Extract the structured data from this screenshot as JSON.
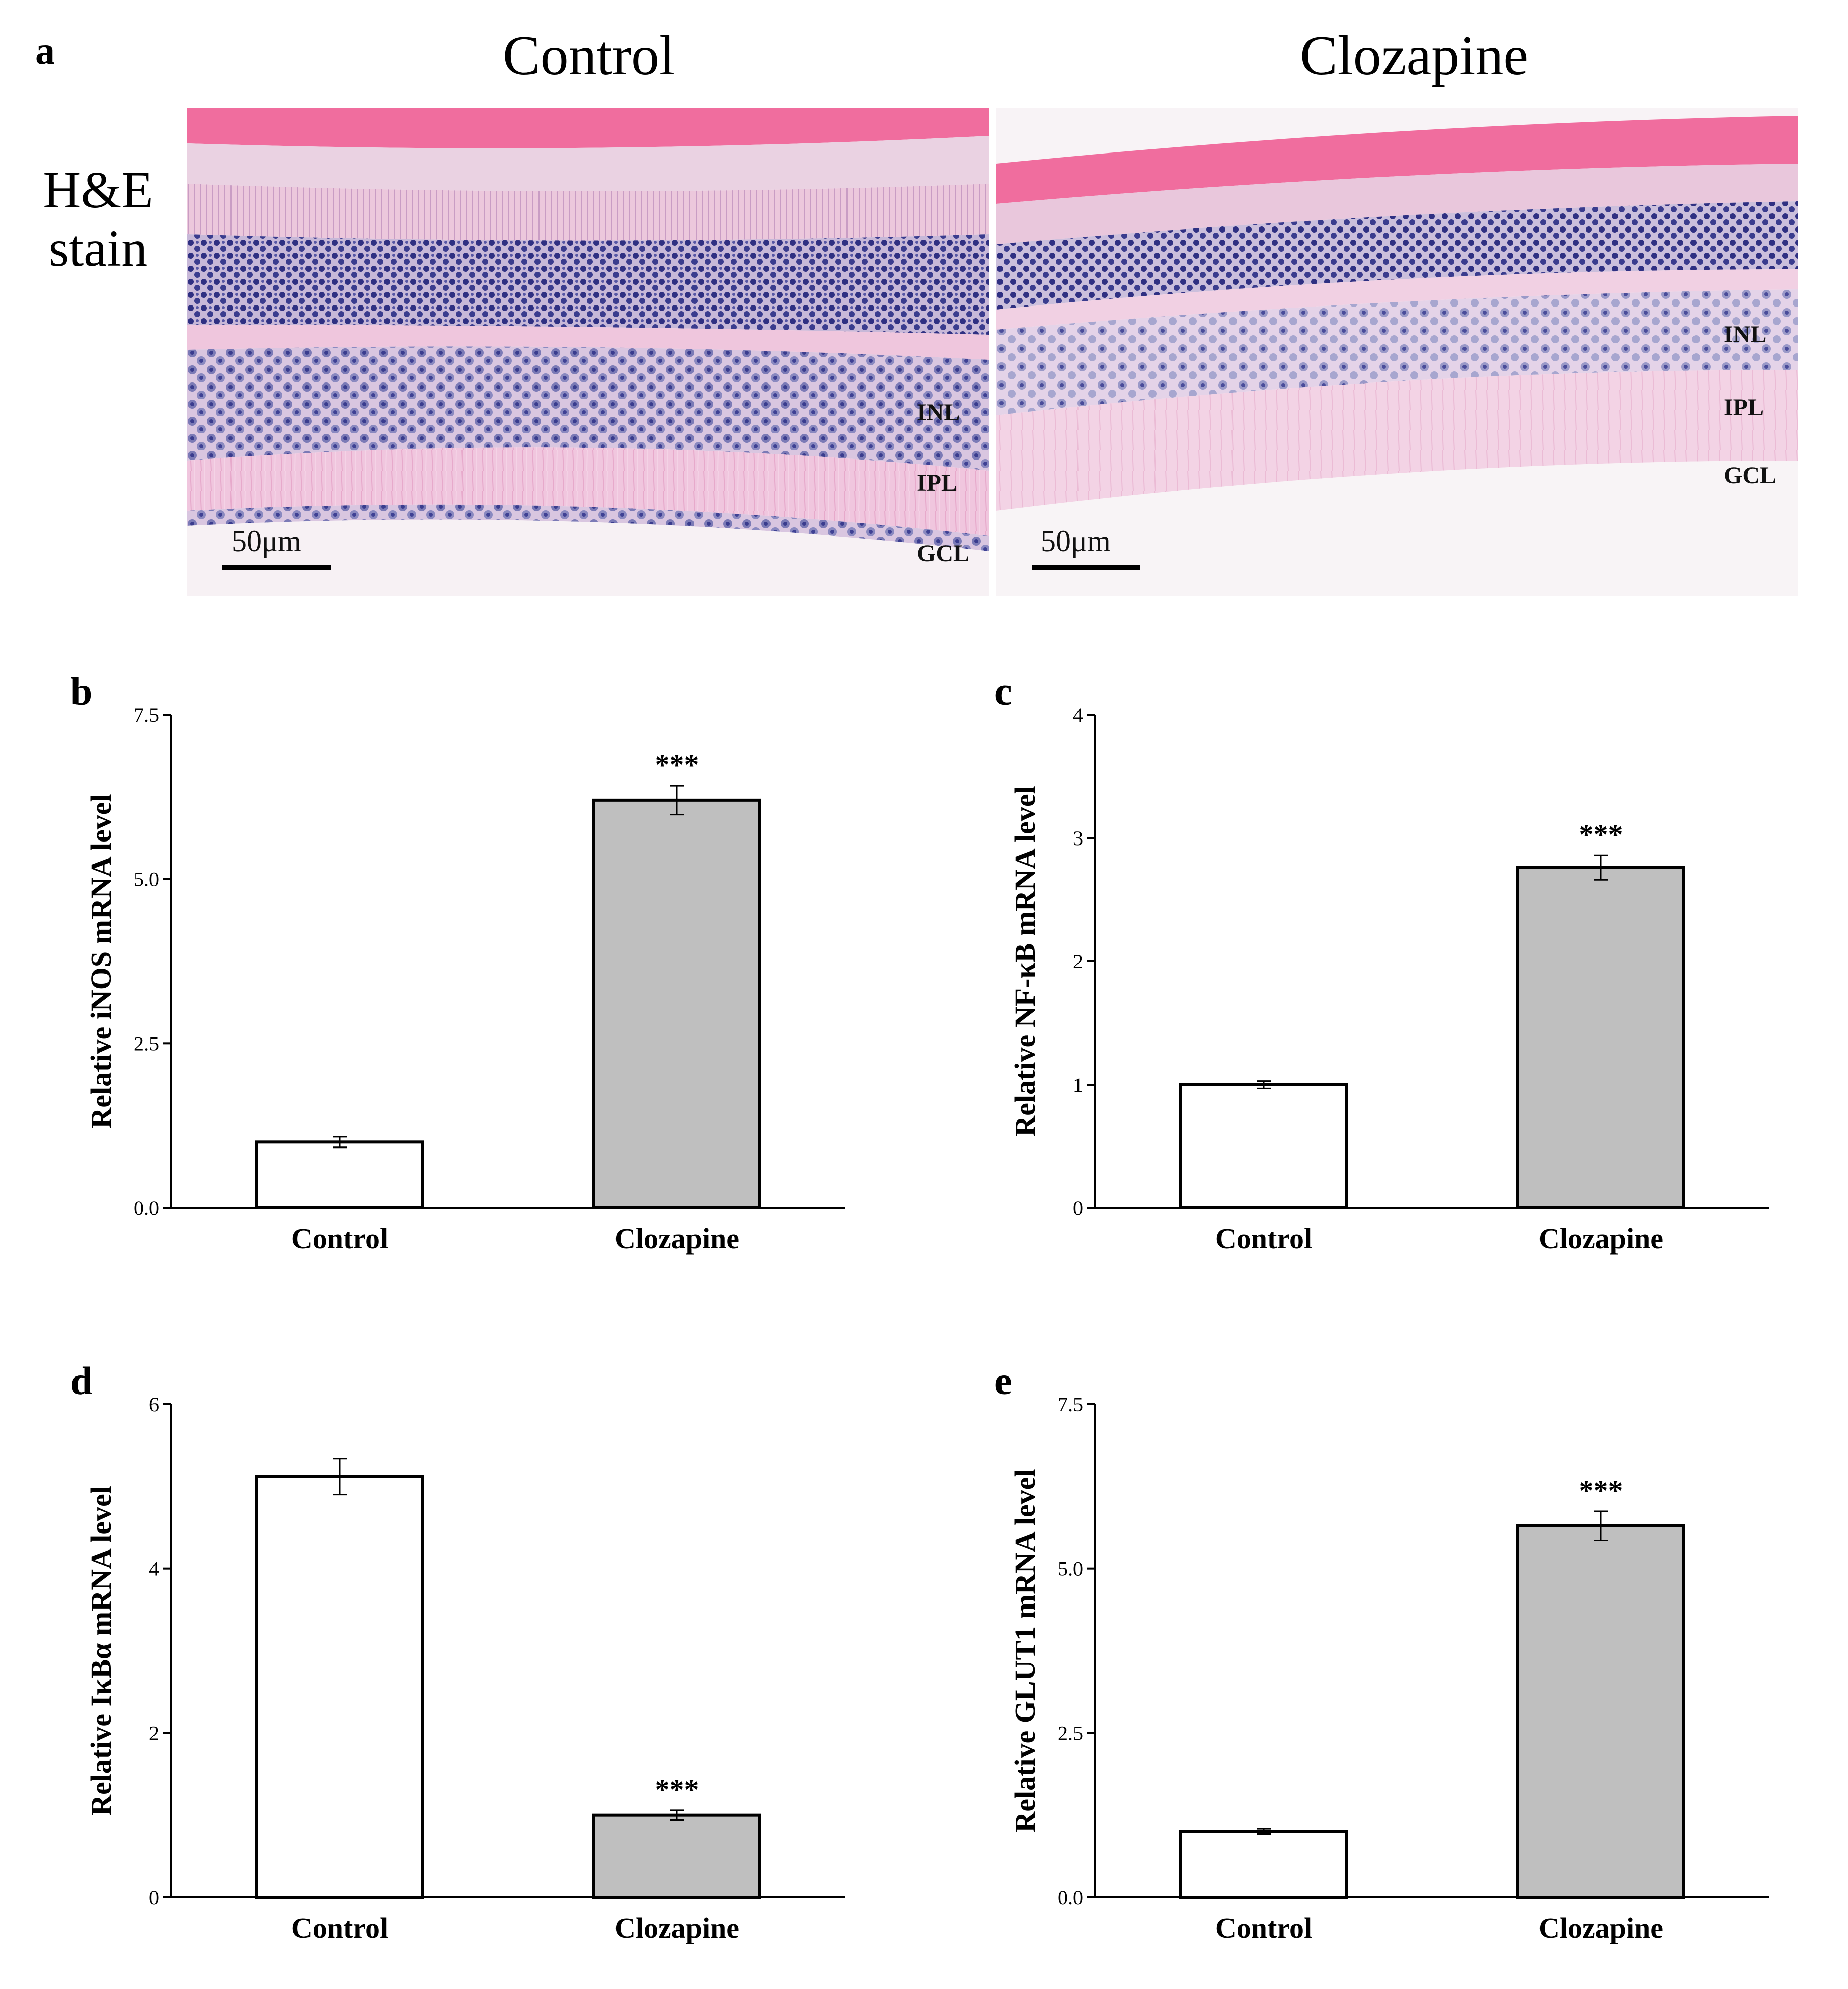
{
  "panel_a": {
    "letter": "a",
    "col_titles": [
      "Control",
      "Clozapine"
    ],
    "row_label_line1": "H&E",
    "row_label_line2": "stain",
    "scale_bar": "50μm",
    "layers_control": [
      "INL",
      "IPL",
      "GCL"
    ],
    "layers_clozapine": [
      "INL",
      "IPL",
      "GCL"
    ],
    "colors": {
      "stroma": "#f06d9e",
      "nuclei": "#3a3c8e",
      "neuropil": "#eec3dd",
      "background": "#f7f2f5"
    }
  },
  "chart_data": [
    {
      "id": "b",
      "type": "bar",
      "letter": "b",
      "categories": [
        "Control",
        "Clozapine"
      ],
      "values": [
        1.0,
        6.2
      ],
      "errors": [
        0.08,
        0.22
      ],
      "bar_colors": [
        "#ffffff",
        "#bfbfbf"
      ],
      "significance": [
        "",
        "***"
      ],
      "ylabel": "Relative iNOS mRNA level",
      "ylim": [
        0,
        7.5
      ],
      "yticks": [
        0,
        2.5,
        5,
        7.5
      ],
      "ytick_labels": [
        "0.0",
        "2.5",
        "5.0",
        "7.5"
      ]
    },
    {
      "id": "c",
      "type": "bar",
      "letter": "c",
      "categories": [
        "Control",
        "Clozapine"
      ],
      "values": [
        1.0,
        2.76
      ],
      "errors": [
        0.03,
        0.1
      ],
      "bar_colors": [
        "#ffffff",
        "#bfbfbf"
      ],
      "significance": [
        "",
        "***"
      ],
      "ylabel": "Relative NF-κB mRNA level",
      "ylim": [
        0,
        4
      ],
      "yticks": [
        0,
        1,
        2,
        3,
        4
      ],
      "ytick_labels": [
        "0",
        "1",
        "2",
        "3",
        "4"
      ]
    },
    {
      "id": "d",
      "type": "bar",
      "letter": "d",
      "categories": [
        "Control",
        "Clozapine"
      ],
      "values": [
        5.12,
        1.0
      ],
      "errors": [
        0.22,
        0.06
      ],
      "bar_colors": [
        "#ffffff",
        "#bfbfbf"
      ],
      "significance": [
        "",
        "***"
      ],
      "ylabel": "Relative IκBα mRNA level",
      "ylim": [
        0,
        6
      ],
      "yticks": [
        0,
        2,
        4,
        6
      ],
      "ytick_labels": [
        "0",
        "2",
        "4",
        "6"
      ]
    },
    {
      "id": "e",
      "type": "bar",
      "letter": "e",
      "categories": [
        "Control",
        "Clozapine"
      ],
      "values": [
        1.0,
        5.65
      ],
      "errors": [
        0.04,
        0.22
      ],
      "bar_colors": [
        "#ffffff",
        "#bfbfbf"
      ],
      "significance": [
        "",
        "***"
      ],
      "ylabel": "Relative GLUT1 mRNA level",
      "ylim": [
        0,
        7.5
      ],
      "yticks": [
        0,
        2.5,
        5,
        7.5
      ],
      "ytick_labels": [
        "0.0",
        "2.5",
        "5.0",
        "7.5"
      ]
    }
  ]
}
